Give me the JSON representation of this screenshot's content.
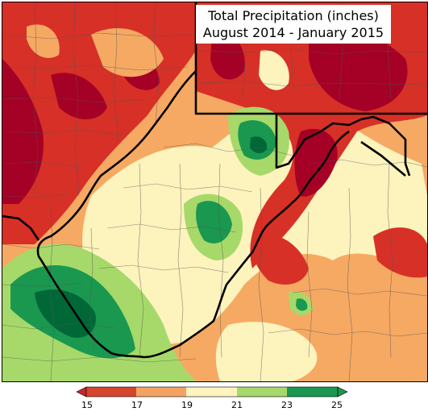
{
  "map": {
    "title_line1": "Total Precipitation (inches)",
    "title_line2": "August 2014 - January 2015"
  },
  "legend": {
    "ticks": [
      "15",
      "17",
      "19",
      "21",
      "23",
      "25"
    ],
    "bins": [
      {
        "range": "<15",
        "color": "#c8282a"
      },
      {
        "range": "15-17",
        "color": "#d6462e"
      },
      {
        "range": "17-19",
        "color": "#f4a262"
      },
      {
        "range": "19-21",
        "color": "#fdf4c0"
      },
      {
        "range": "21-23",
        "color": "#a6d96a"
      },
      {
        "range": "23-25",
        "color": "#1a9850"
      },
      {
        "range": ">25",
        "color": "#1a9850"
      }
    ]
  },
  "colors": {
    "very_dry": "#a50026",
    "dry": "#d73027",
    "moderately_dry": "#f4a262",
    "normal": "#fffac0",
    "wet": "#a6d96a",
    "very_wet": "#1a9850",
    "wettest": "#006837",
    "border": "#000000"
  }
}
